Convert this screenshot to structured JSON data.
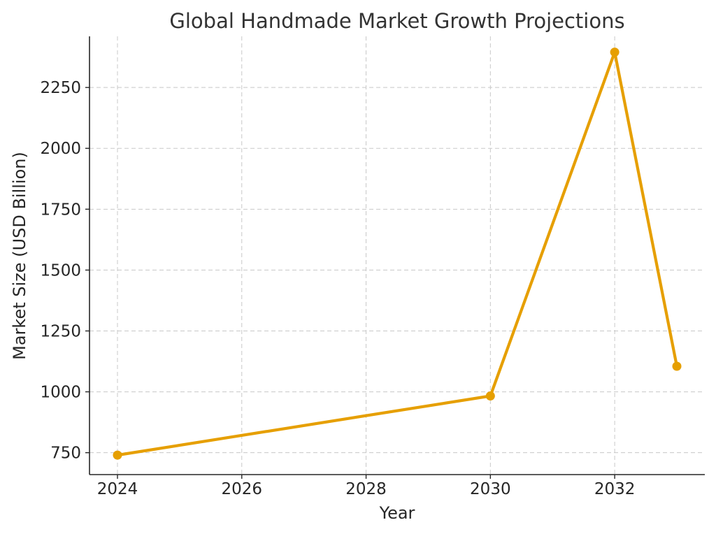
{
  "chart_data": {
    "type": "line",
    "title": "Global Handmade Market Growth Projections",
    "xlabel": "Year",
    "ylabel": "Market Size (USD Billion)",
    "xlim": [
      2023.55,
      2033.45
    ],
    "ylim": [
      660,
      2460
    ],
    "x_ticks": [
      2024,
      2026,
      2028,
      2030,
      2032
    ],
    "y_ticks": [
      750,
      1000,
      1250,
      1500,
      1750,
      2000,
      2250
    ],
    "grid": true,
    "series": [
      {
        "color": "#E69F00",
        "x": [
          2024,
          2030,
          2032,
          2033
        ],
        "y": [
          740,
          983,
          2395,
          1105
        ]
      }
    ]
  }
}
